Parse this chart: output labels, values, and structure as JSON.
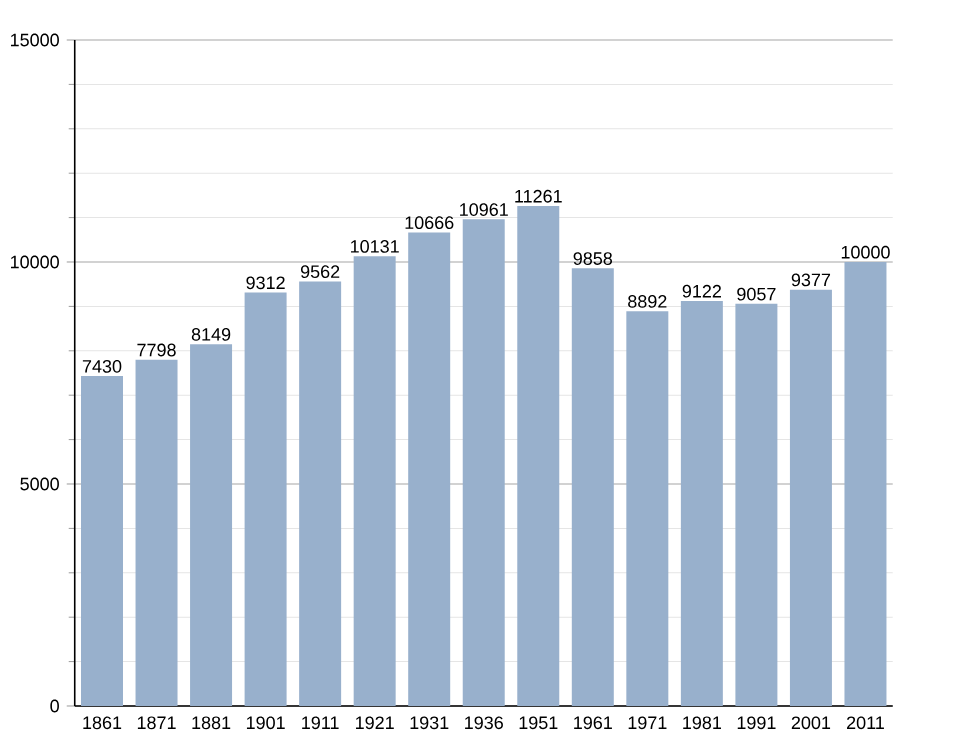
{
  "chart_data": {
    "type": "bar",
    "categories": [
      "1861",
      "1871",
      "1881",
      "1901",
      "1911",
      "1921",
      "1931",
      "1936",
      "1951",
      "1961",
      "1971",
      "1981",
      "1991",
      "2001",
      "2011"
    ],
    "values": [
      7430,
      7798,
      8149,
      9312,
      9562,
      10131,
      10666,
      10961,
      11261,
      9858,
      8892,
      9122,
      9057,
      9377,
      10000
    ],
    "color": "#98b0cc",
    "ylim": [
      0,
      15000
    ],
    "yticks": [
      0,
      {
        "value": 1000,
        "label": null
      },
      {
        "value": 2000,
        "label": null
      },
      {
        "value": 3000,
        "label": null
      },
      {
        "value": 4000,
        "label": null
      },
      5000,
      {
        "value": 6000,
        "label": null
      },
      {
        "value": 7000,
        "label": null
      },
      {
        "value": 8000,
        "label": null
      },
      {
        "value": 9000,
        "label": null
      },
      10000,
      {
        "value": 11000,
        "label": null
      },
      {
        "value": 12000,
        "label": null
      },
      {
        "value": 13000,
        "label": null
      },
      {
        "value": 14000,
        "label": null
      },
      15000
    ],
    "grid": true,
    "data_labels": true
  }
}
